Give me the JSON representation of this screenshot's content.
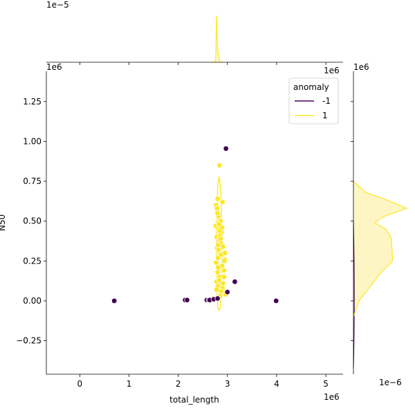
{
  "chart_data": {
    "type": "scatter",
    "xlabel": "total_length",
    "ylabel": "N50",
    "x_offset_label": "1e6",
    "y_offset_label": "1e6",
    "top_marginal_offset_label": "1e−5",
    "right_marginal_offset_label": "1e−6",
    "xlim": [
      -0.68,
      5.35
    ],
    "ylim": [
      -0.46,
      1.44
    ],
    "x_ticks": [
      0,
      1,
      2,
      3,
      4,
      5
    ],
    "y_ticks": [
      -0.25,
      0.0,
      0.25,
      0.5,
      0.75,
      1.0,
      1.25
    ],
    "y_tick_labels": [
      "−0.25",
      "0.00",
      "0.25",
      "0.50",
      "0.75",
      "1.00",
      "1.25"
    ],
    "colors": {
      "anomaly_neg": "#440154",
      "anomaly_pos": "#fde725",
      "pos_fill": "#fdf6c4"
    },
    "legend": {
      "title": "anomaly",
      "placement": "top-right",
      "entries": [
        {
          "label": "-1",
          "color": "#440154"
        },
        {
          "label": "1",
          "color": "#fde725"
        }
      ]
    },
    "series": [
      {
        "name": "-1",
        "x": [
          0.7,
          2.14,
          2.18,
          2.58,
          2.62,
          2.64,
          2.72,
          2.8,
          2.97,
          3.0,
          3.15,
          3.99
        ],
        "y": [
          0.0,
          0.005,
          0.005,
          0.005,
          0.005,
          0.005,
          0.01,
          0.015,
          0.955,
          0.055,
          0.12,
          0.0
        ]
      },
      {
        "name": "1",
        "x": [
          2.84,
          2.8,
          2.77,
          2.79,
          2.82,
          2.86,
          2.76,
          2.81,
          2.88,
          2.9,
          2.78,
          2.83,
          2.87,
          2.79,
          2.85,
          2.81,
          2.77,
          2.89,
          2.82,
          2.8,
          2.84,
          2.78,
          2.86,
          2.9,
          2.92,
          2.96,
          2.93,
          2.95,
          2.91,
          2.85,
          2.79,
          2.82,
          2.88,
          2.81,
          2.94,
          2.8,
          2.83,
          2.87,
          2.78,
          2.84,
          2.86,
          2.82,
          2.89,
          2.8,
          2.93,
          2.91,
          2.85,
          2.81,
          2.95,
          2.83
        ],
        "y": [
          0.85,
          0.64,
          0.6,
          0.56,
          0.52,
          0.5,
          0.47,
          0.45,
          0.43,
          0.62,
          0.4,
          0.38,
          0.36,
          0.33,
          0.3,
          0.27,
          0.24,
          0.22,
          0.2,
          0.18,
          0.15,
          0.12,
          0.1,
          0.08,
          0.05,
          0.04,
          0.19,
          0.26,
          0.34,
          0.41,
          0.58,
          0.53,
          0.29,
          0.35,
          0.25,
          0.09,
          0.13,
          0.06,
          0.07,
          0.44,
          0.39,
          0.32,
          0.46,
          0.55,
          0.15,
          0.11,
          0.03,
          0.21,
          0.3,
          0.48
        ]
      }
    ],
    "kde_contour": {
      "series": "1",
      "x_center": 2.83,
      "y_range": [
        -0.04,
        0.78
      ],
      "half_width": 0.06
    },
    "marginal_x": {
      "series": "1",
      "peak_x": 2.78,
      "peak_density": 1.25,
      "ylim": [
        0,
        1.5
      ]
    },
    "marginal_y": {
      "series": "1",
      "y": [
        -0.1,
        0.0,
        0.1,
        0.18,
        0.25,
        0.32,
        0.4,
        0.45,
        0.49,
        0.53,
        0.58,
        0.63,
        0.68,
        0.75
      ],
      "density": [
        0.0,
        0.1,
        0.32,
        0.5,
        0.7,
        0.69,
        0.67,
        0.58,
        0.38,
        0.55,
        0.95,
        0.62,
        0.22,
        0.0
      ],
      "xlim": [
        0,
        1.05
      ]
    }
  }
}
